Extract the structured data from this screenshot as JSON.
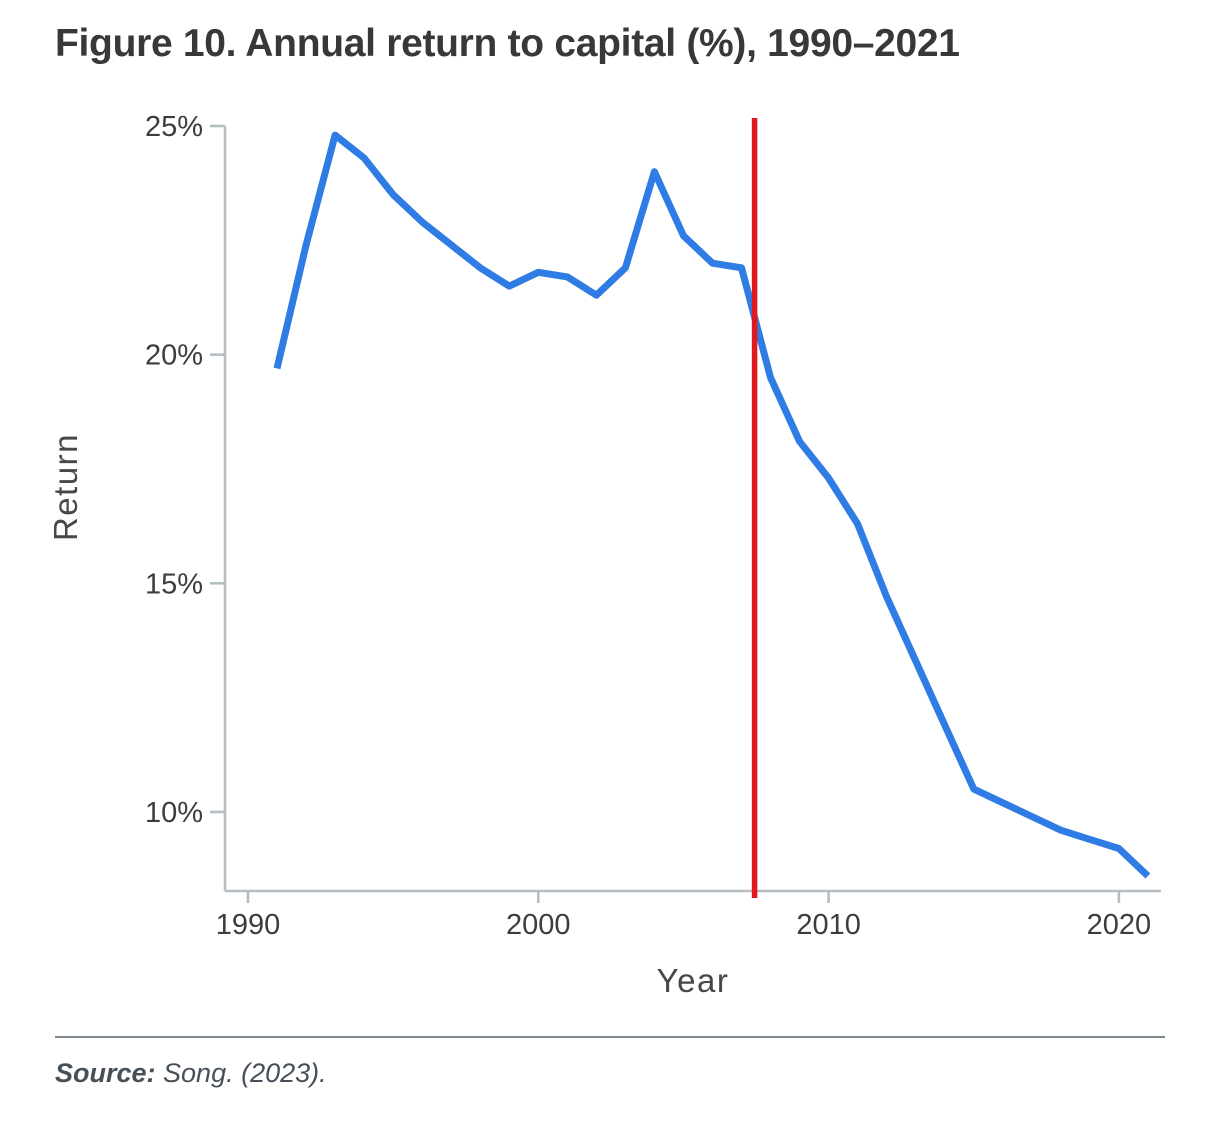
{
  "figure": {
    "title": "Figure 10. Annual return to capital (%), 1990–2021",
    "source_label": "Source:",
    "source_text": " Song. (2023)."
  },
  "colors": {
    "series_line": "#2e7ce4",
    "reference_line": "#e1181c",
    "axis": "#b4bec3",
    "tick_text": "#3d3d3d",
    "axis_title_text": "#474747",
    "title_text": "#383838",
    "source_text": "#475059",
    "divider": "#7f8a90"
  },
  "chart_data": {
    "type": "line",
    "title": "Figure 10. Annual return to capital (%), 1990–2021",
    "xlabel": "Year",
    "ylabel": "Return",
    "grid": false,
    "legend": false,
    "xlim": [
      1989.2,
      2021.6
    ],
    "ylim": [
      8.2,
      25.2
    ],
    "x_ticks": [
      {
        "value": 1990,
        "label": "1990"
      },
      {
        "value": 2000,
        "label": "2000"
      },
      {
        "value": 2010,
        "label": "2010"
      },
      {
        "value": 2020,
        "label": "2020"
      }
    ],
    "y_ticks": [
      {
        "value": 25,
        "label": "25%"
      },
      {
        "value": 20,
        "label": "20%"
      },
      {
        "value": 15,
        "label": "15%"
      },
      {
        "value": 10,
        "label": "10%"
      }
    ],
    "series": [
      {
        "name": "Annual return to capital (%)",
        "color": "#2e7ce4",
        "x": [
          1991,
          1992,
          1993,
          1994,
          1995,
          1996,
          1997,
          1998,
          1999,
          2000,
          2001,
          2002,
          2003,
          2004,
          2005,
          2006,
          2007,
          2008,
          2009,
          2010,
          2011,
          2012,
          2013,
          2014,
          2015,
          2016,
          2017,
          2018,
          2019,
          2020,
          2021
        ],
        "y": [
          19.7,
          22.4,
          24.8,
          24.3,
          23.5,
          22.9,
          22.4,
          21.9,
          21.5,
          21.8,
          21.7,
          21.3,
          21.9,
          24.0,
          22.6,
          22.0,
          21.9,
          19.5,
          18.1,
          17.3,
          16.3,
          14.7,
          13.3,
          11.9,
          10.5,
          10.2,
          9.9,
          9.6,
          9.4,
          9.2,
          8.6
        ]
      }
    ],
    "reference_line": {
      "orientation": "vertical",
      "x": 2007.45,
      "color": "#e1181c"
    }
  }
}
